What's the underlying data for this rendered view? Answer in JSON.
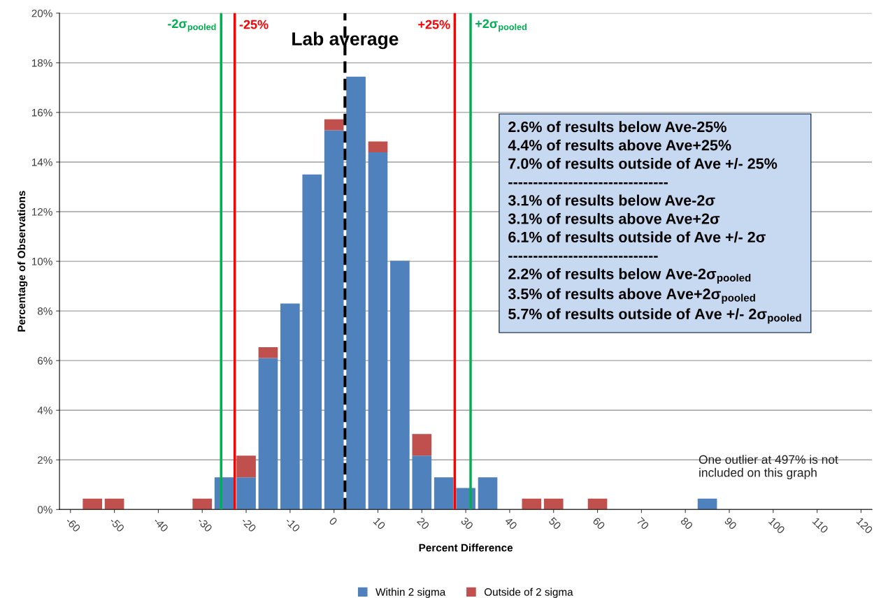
{
  "chart_data": {
    "type": "bar",
    "stacked": true,
    "xlabel": "Percent Difference",
    "ylabel": "Percentage of Observations",
    "x": [
      -60,
      -55,
      -50,
      -45,
      -40,
      -35,
      -30,
      -25,
      -20,
      -15,
      -10,
      -5,
      0,
      5,
      10,
      15,
      20,
      25,
      30,
      35,
      40,
      45,
      50,
      55,
      60,
      65,
      70,
      75,
      80,
      85,
      90,
      95,
      100,
      105,
      110,
      115,
      120
    ],
    "series": [
      {
        "name": "Within 2 sigma",
        "color": "#4f81bd",
        "values": [
          0,
          0,
          0,
          0,
          0,
          0,
          0,
          1.3,
          1.3,
          6.1,
          8.3,
          13.5,
          15.28,
          17.44,
          14.39,
          10.02,
          2.17,
          1.3,
          0.87,
          1.3,
          0,
          0,
          0,
          0,
          0,
          0,
          0,
          0,
          0,
          0.44,
          0,
          0,
          0,
          0,
          0,
          0,
          0
        ]
      },
      {
        "name": "Outside of 2 sigma",
        "color": "#c0504d",
        "values": [
          0,
          0.44,
          0.44,
          0,
          0,
          0,
          0.44,
          0,
          0.87,
          0.44,
          0,
          0,
          0.44,
          0,
          0.44,
          0,
          0.87,
          0,
          0,
          0,
          0,
          0.44,
          0.44,
          0,
          0.44,
          0,
          0,
          0,
          0,
          0,
          0,
          0,
          0,
          0,
          0,
          0,
          0
        ]
      }
    ],
    "xlim": [
      -62.5,
      122.5
    ],
    "xticks": [
      -60,
      -50,
      -40,
      -30,
      -20,
      -10,
      0,
      10,
      20,
      30,
      40,
      50,
      60,
      70,
      80,
      90,
      100,
      110,
      120
    ],
    "ylim": [
      0,
      20
    ],
    "yticks": [
      {
        "value": 0,
        "label": "0%"
      },
      {
        "value": 2,
        "label": "2%"
      },
      {
        "value": 4,
        "label": "4%"
      },
      {
        "value": 6,
        "label": "6%"
      },
      {
        "value": 8,
        "label": "8%"
      },
      {
        "value": 10,
        "label": "10%"
      },
      {
        "value": 12,
        "label": "12%"
      },
      {
        "value": 14,
        "label": "14%"
      },
      {
        "value": 16,
        "label": "16%"
      },
      {
        "value": 18,
        "label": "18%"
      },
      {
        "value": 20,
        "label": "20%"
      }
    ],
    "grid": "y",
    "legend": "bottom",
    "ref_lines": [
      {
        "axis": "x",
        "value": -25.7,
        "color": "#00b050",
        "line_style": "solid"
      },
      {
        "axis": "x",
        "value": -22.6,
        "color": "#ff0000",
        "line_style": "solid"
      },
      {
        "axis": "x",
        "value": 2.5,
        "color": "#000000",
        "line_style": "dashed"
      },
      {
        "axis": "x",
        "value": 27.5,
        "color": "#ff0000",
        "line_style": "solid"
      },
      {
        "axis": "x",
        "value": 31.1,
        "color": "#00b050",
        "line_style": "solid"
      }
    ],
    "annotations": [
      "2.6% of results below Ave-25%\n4.4% of results above Ave+25%\n7.0% of results outside of Ave +/- 25%\n--------------------------------\n3.1% of results below Ave-2σ\n3.1% of results above Ave+2σ\n6.1% of results outside of Ave +/- 2σ\n------------------------------\n2.2% of results below Ave-2σ$_{pooled}$\n3.5% of results above Ave+2σ$_{pooled}$\n5.7% of results outside of Ave +/- 2σ$_{pooled}$",
      "One outlier at 497% is not\nincluded on this graph",
      {
        "text": "-2σ$_{pooled}$",
        "x": -25.7,
        "y": 19.5
      },
      {
        "text": "-25%",
        "x": -22.6,
        "y": 19.5
      },
      {
        "text": "Lab average",
        "x": 2.5,
        "y": 18.9
      },
      {
        "text": "+25%",
        "x": 27.5,
        "y": 19.5
      },
      {
        "text": "+2σ$_{pooled}$",
        "x": 31.1,
        "y": 19.5
      }
    ]
  }
}
